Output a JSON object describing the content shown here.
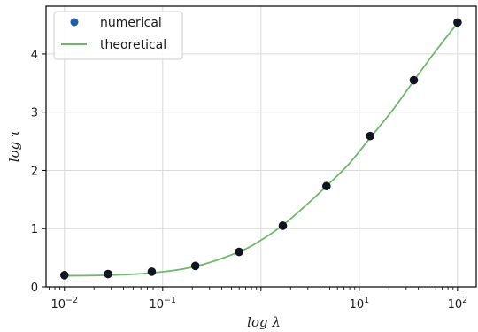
{
  "chart_data": {
    "type": "scatter",
    "xscale": "log",
    "xlim": [
      0.0065,
      155
    ],
    "ylim": [
      0,
      4.82
    ],
    "grid": true,
    "legend_position": "top-left",
    "xlabel": "log λ",
    "ylabel": "log τ",
    "x_ticks": [
      {
        "value": 0.01,
        "base": "10",
        "exp": "−2"
      },
      {
        "value": 0.1,
        "base": "10",
        "exp": "−1"
      },
      {
        "value": 10,
        "base": "10",
        "exp": "1"
      },
      {
        "value": 100,
        "base": "10",
        "exp": "2"
      }
    ],
    "y_ticks": [
      0,
      1,
      2,
      3,
      4
    ],
    "series": [
      {
        "name": "numerical",
        "kind": "scatter",
        "color": "#0f1420",
        "legend_color": "#1f5fa8",
        "x": [
          0.01,
          0.0278,
          0.0774,
          0.215,
          0.599,
          1.668,
          4.64,
          12.92,
          35.9,
          100
        ],
        "y": [
          0.2,
          0.22,
          0.26,
          0.36,
          0.6,
          1.05,
          1.73,
          2.59,
          3.55,
          4.54
        ]
      },
      {
        "name": "theoretical",
        "kind": "line",
        "color": "#6db86a",
        "x": [
          0.01,
          0.0278,
          0.0774,
          0.215,
          0.599,
          1.0,
          1.668,
          2.78,
          4.64,
          7.74,
          12.92,
          21.5,
          35.9,
          59.9,
          100
        ],
        "y": [
          0.19,
          0.2,
          0.24,
          0.35,
          0.6,
          0.8,
          1.06,
          1.38,
          1.73,
          2.1,
          2.56,
          3.02,
          3.54,
          4.05,
          4.53
        ]
      }
    ]
  }
}
